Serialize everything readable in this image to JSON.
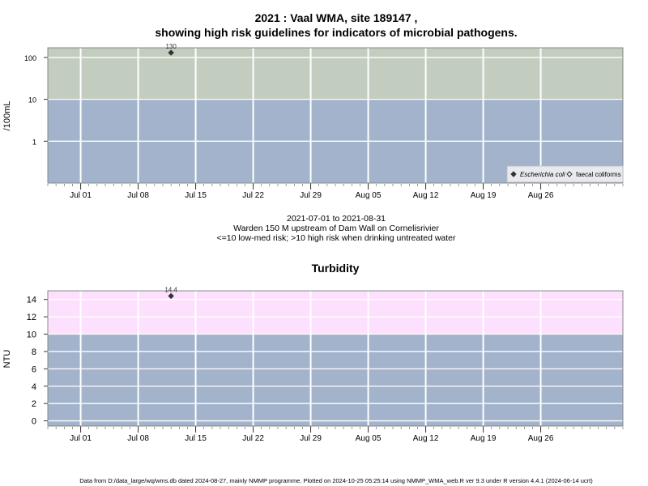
{
  "page": {
    "title_line1": "2021 : Vaal WMA, site 189147 ,",
    "title_line2": "showing high risk guidelines for indicators of microbial pathogens.",
    "date_range": "2021-07-01 to 2021-08-31",
    "site_description": "Warden 150 M upstream of Dam Wall on Cornelisrivier",
    "risk_note": "<=10 low-med risk; >10 high risk when drinking untreated water",
    "footer": "Data from D:/data_large/wq/wms.db dated 2024-08-27, mainly NMMP programme. Plotted on 2024-10-25 05:25:14 using NMMP_WMA_web.R ver 9.3 under R version 4.4.1 (2024-06-14 ucrt)"
  },
  "chart_data": [
    {
      "type": "scatter",
      "title": "",
      "xlabel": "",
      "ylabel": "/100mL",
      "y_scale": "log",
      "ylim": [
        0.1,
        170
      ],
      "xlim": [
        "2021-06-27",
        "2021-09-05"
      ],
      "y_ticks": [
        "1",
        "10",
        "100"
      ],
      "x_ticks": [
        "Jul 01",
        "Jul 08",
        "Jul 15",
        "Jul 22",
        "Jul 29",
        "Aug 05",
        "Aug 12",
        "Aug 19",
        "Aug 26"
      ],
      "bands": [
        {
          "from": 0.1,
          "to": 10,
          "color": "#a2b3cb",
          "meaning": "low-med risk"
        },
        {
          "from": 10,
          "to": 170,
          "color": "#c2cdc0",
          "meaning": "high risk"
        }
      ],
      "legend": {
        "position": "bottom-right",
        "entries": [
          "Escherichia coli",
          "faecal coliforms"
        ]
      },
      "series": [
        {
          "name": "Escherichia coli",
          "marker": "filled-diamond",
          "color": "#333333",
          "points": [
            {
              "x": "2021-07-12",
              "y": 130,
              "label": "130"
            }
          ]
        },
        {
          "name": "faecal coliforms",
          "marker": "open-diamond",
          "color": "#333333",
          "points": []
        }
      ]
    },
    {
      "type": "scatter",
      "title": "Turbidity",
      "xlabel": "",
      "ylabel": "NTU",
      "ylim": [
        -0.6,
        15
      ],
      "xlim": [
        "2021-06-27",
        "2021-09-05"
      ],
      "y_ticks": [
        "0",
        "2",
        "4",
        "6",
        "8",
        "10",
        "12",
        "14"
      ],
      "x_ticks": [
        "Jul 01",
        "Jul 08",
        "Jul 15",
        "Jul 22",
        "Jul 29",
        "Aug 05",
        "Aug 12",
        "Aug 19",
        "Aug 26"
      ],
      "bands": [
        {
          "from": -0.6,
          "to": 10,
          "color": "#a2b3cb",
          "meaning": "low-med risk"
        },
        {
          "from": 10,
          "to": 15,
          "color": "#fde0fd",
          "meaning": "high risk"
        }
      ],
      "series": [
        {
          "name": "",
          "marker": "filled-diamond",
          "color": "#333333",
          "points": [
            {
              "x": "2021-07-12",
              "y": 14.4,
              "label": "14.4"
            }
          ]
        }
      ]
    }
  ]
}
